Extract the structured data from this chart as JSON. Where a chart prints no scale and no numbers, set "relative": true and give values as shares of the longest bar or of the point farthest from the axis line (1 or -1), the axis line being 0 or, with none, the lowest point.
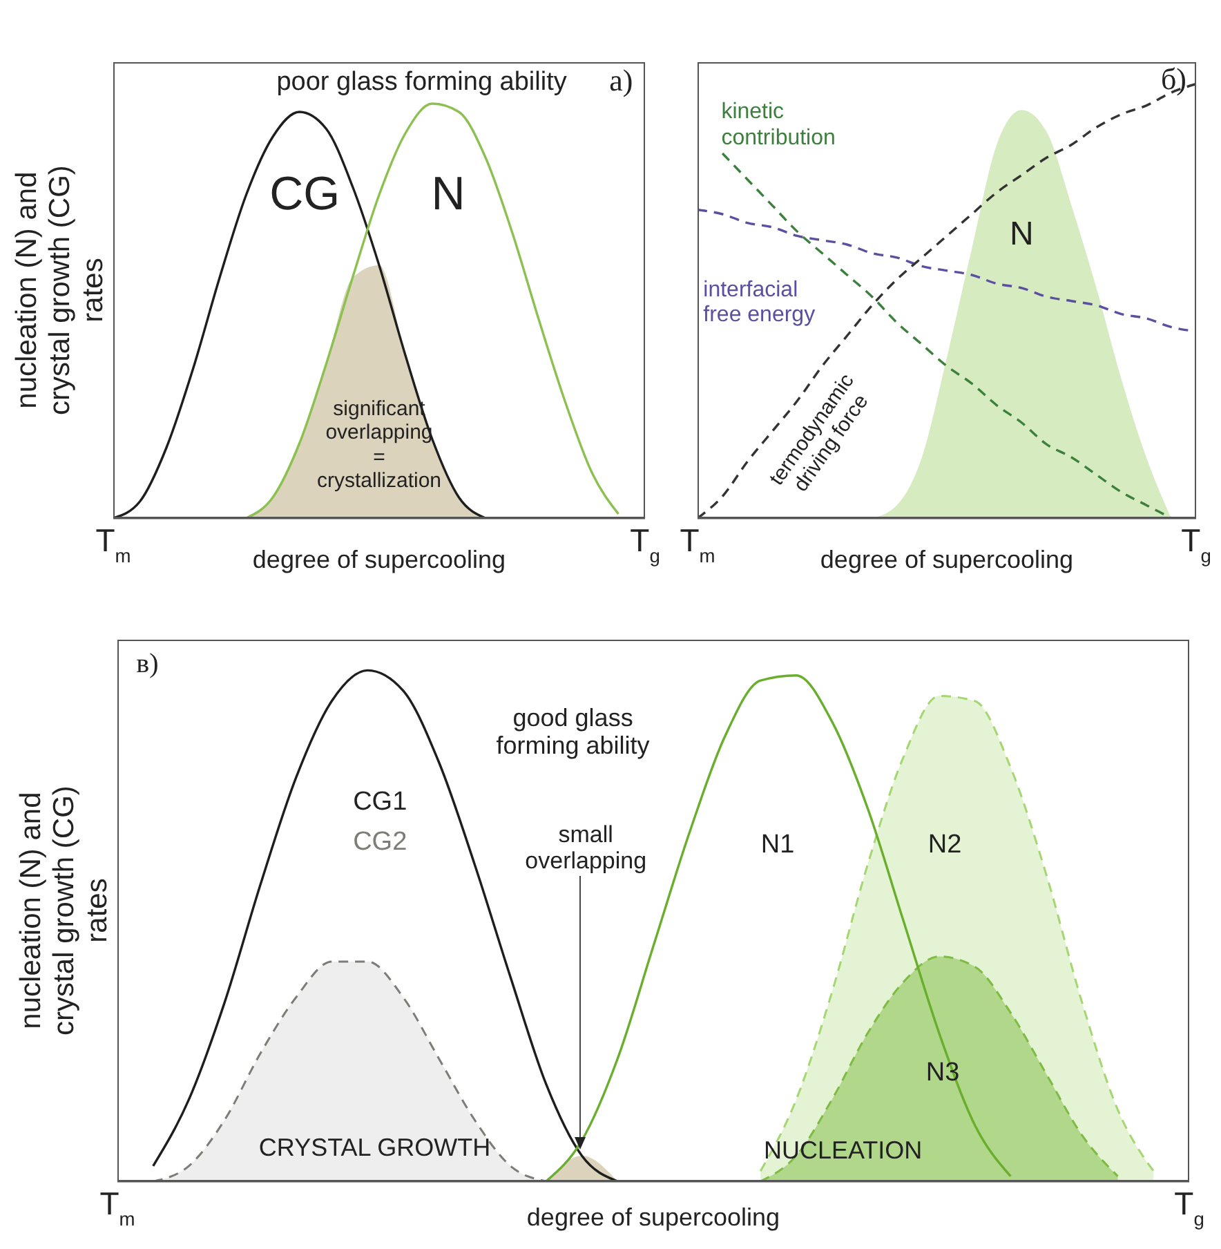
{
  "chart_data": [
    {
      "type": "line",
      "relative": true,
      "title": "poor glass forming ability",
      "xlabel": "degree of supercooling",
      "ylabel": "nucleation (N) and crystal growth (CG) rates",
      "annotations": [
        "a)",
        "significant\noverlapping\n=\ncrystallization"
      ],
      "categories": [
        "T$_{m}$",
        null,
        null,
        null,
        null,
        null,
        null,
        null,
        null,
        null,
        null,
        null,
        null,
        null,
        null,
        null,
        null,
        null,
        null,
        null,
        "T$_{g}$"
      ],
      "series": [
        {
          "type": "area",
          "color": "#cfc4a6",
          "values": [
            null,
            null,
            null,
            null,
            null,
            0,
            0.05,
            0.18,
            0.37,
            0.58,
            0.61,
            0.39,
            0.19,
            0.05,
            0,
            null,
            null,
            null,
            null,
            null,
            null
          ]
        },
        {
          "name": "CG",
          "color": "#1e1e1e",
          "line_style": "solid",
          "values": [
            0,
            0.04,
            0.17,
            0.36,
            0.58,
            0.78,
            0.92,
            0.98,
            0.94,
            0.8,
            0.61,
            0.39,
            0.19,
            0.05,
            0,
            null,
            null,
            null,
            null,
            null,
            null
          ]
        },
        {
          "name": "N",
          "color": "#8cc152",
          "line_style": "solid",
          "values": [
            null,
            null,
            null,
            null,
            null,
            0,
            0.05,
            0.18,
            0.37,
            0.58,
            0.78,
            0.93,
            1,
            0.98,
            0.87,
            0.69,
            0.48,
            0.28,
            0.11,
            0.01,
            null
          ]
        }
      ]
    },
    {
      "type": "line",
      "relative": true,
      "xlabel": "degree of supercooling",
      "annotations": [
        "б)"
      ],
      "categories": [
        "T$_{m}$",
        null,
        null,
        null,
        null,
        null,
        null,
        null,
        null,
        null,
        null,
        null,
        null,
        null,
        null,
        null,
        null,
        null,
        null,
        null,
        "T$_{g}$"
      ],
      "series": [
        {
          "name": "N",
          "type": "area",
          "color": "#b5da8a",
          "values": [
            null,
            null,
            null,
            null,
            null,
            null,
            null,
            0,
            0.03,
            0.14,
            0.37,
            0.62,
            0.86,
            0.94,
            0.89,
            0.72,
            0.53,
            0.32,
            0.14,
            0,
            null
          ]
        },
        {
          "name": "kinetic contribution",
          "color": "#3d7f3d",
          "line_style": "dashed",
          "values": [
            null,
            0.84,
            0.78,
            0.72,
            0.66,
            0.61,
            0.56,
            0.51,
            0.45,
            0.4,
            0.35,
            0.31,
            0.26,
            0.22,
            0.17,
            0.14,
            0.1,
            0.06,
            0.03,
            0,
            null
          ]
        },
        {
          "name": "interfacial free energy",
          "color": "#5a4fa0",
          "line_style": "dashed",
          "values": [
            0.71,
            0.7,
            0.68,
            0.67,
            0.65,
            0.64,
            0.63,
            0.61,
            0.6,
            0.58,
            0.57,
            0.56,
            0.54,
            0.53,
            0.51,
            0.5,
            0.49,
            0.47,
            0.46,
            0.44,
            0.43
          ]
        },
        {
          "name": "termodynamic driving force",
          "color": "#333333",
          "line_style": "dashed",
          "values": [
            0,
            0.05,
            0.13,
            0.2,
            0.27,
            0.35,
            0.42,
            0.49,
            0.55,
            0.6,
            0.65,
            0.7,
            0.75,
            0.79,
            0.83,
            0.86,
            0.9,
            0.93,
            0.95,
            0.98,
            1
          ]
        }
      ]
    },
    {
      "type": "line",
      "relative": true,
      "title": "good glass forming ability",
      "xlabel": "degree of supercooling",
      "ylabel": "nucleation (N) and crystal growth (CG) rates",
      "annotations": [
        "в)",
        "small overlapping",
        "CRYSTAL GROWTH",
        "NUCLEATION"
      ],
      "categories": [
        "T$_{m}$",
        null,
        null,
        null,
        null,
        null,
        null,
        null,
        null,
        null,
        null,
        null,
        null,
        null,
        null,
        null,
        null,
        null,
        null,
        null,
        null,
        null,
        null,
        null,
        null,
        null,
        null,
        null,
        null,
        null,
        "T$_{g}$"
      ],
      "series": [
        {
          "name": "CG2",
          "type": "area",
          "color": "#7d7d78",
          "line_style": "dashed",
          "values": [
            null,
            0,
            0.03,
            0.12,
            0.25,
            0.36,
            0.43,
            0.43,
            0.36,
            0.24,
            0.12,
            0.03,
            0,
            null,
            null,
            null,
            null,
            null,
            null,
            null,
            null,
            null,
            null,
            null,
            null,
            null,
            null,
            null,
            null,
            null,
            null
          ]
        },
        {
          "type": "area",
          "color": "#cfc4a6",
          "values": [
            null,
            null,
            null,
            null,
            null,
            null,
            null,
            null,
            null,
            null,
            null,
            null,
            0,
            0.05,
            0,
            null,
            null,
            null,
            null,
            null,
            null,
            null,
            null,
            null,
            null,
            null,
            null,
            null,
            null,
            null,
            null
          ]
        },
        {
          "name": "N2",
          "type": "area",
          "color": "#a6d672",
          "line_style": "dashed",
          "values": [
            null,
            null,
            null,
            null,
            null,
            null,
            null,
            null,
            null,
            null,
            null,
            null,
            null,
            null,
            null,
            null,
            null,
            null,
            0.02,
            0.16,
            0.37,
            0.62,
            0.83,
            0.95,
            0.94,
            0.81,
            0.6,
            0.35,
            0.14,
            0.02,
            null
          ]
        },
        {
          "name": "N3",
          "type": "area",
          "color": "#7dbb42",
          "line_style": "dashed",
          "values": [
            null,
            null,
            null,
            null,
            null,
            null,
            null,
            null,
            null,
            null,
            null,
            null,
            null,
            null,
            null,
            null,
            null,
            null,
            0,
            0.05,
            0.16,
            0.29,
            0.39,
            0.44,
            0.42,
            0.33,
            0.21,
            0.09,
            0.01,
            null,
            null
          ]
        },
        {
          "name": "CG1",
          "color": "#1e1e1e",
          "line_style": "solid",
          "values": [
            null,
            0.03,
            0.16,
            0.35,
            0.58,
            0.79,
            0.94,
            1,
            0.96,
            0.82,
            0.62,
            0.4,
            0.19,
            0.05,
            0,
            null,
            null,
            null,
            null,
            null,
            null,
            null,
            null,
            null,
            null,
            null,
            null,
            null,
            null,
            null,
            null
          ]
        },
        {
          "name": "N1",
          "color": "#6aae2e",
          "line_style": "solid",
          "values": [
            null,
            null,
            null,
            null,
            null,
            null,
            null,
            null,
            null,
            null,
            null,
            null,
            0,
            0.08,
            0.24,
            0.46,
            0.68,
            0.87,
            0.98,
            0.99,
            0.9,
            0.73,
            0.51,
            0.29,
            0.11,
            0.01,
            null,
            null,
            null,
            null,
            null
          ]
        }
      ]
    }
  ]
}
